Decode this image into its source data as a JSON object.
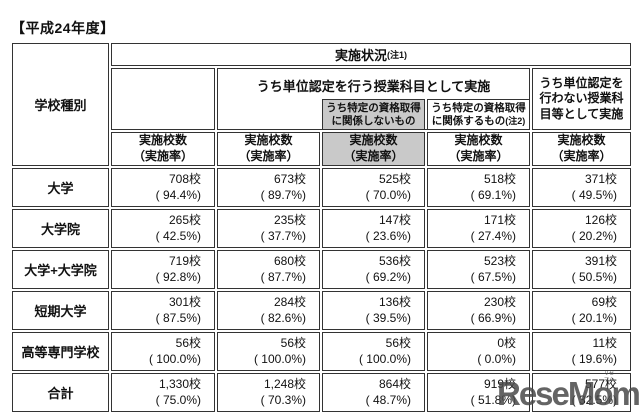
{
  "title": "【平成24年度】",
  "table": {
    "school_type": "学校種別",
    "status_header": "実施状況",
    "status_note": "(注1)",
    "credit_header": "うち単位認定を行う授業科目として実施",
    "not_related_header": "うち特定の資格取得に関係しないもの",
    "related_header": "うち特定の資格取得に関係するもの",
    "related_note": "(注2)",
    "no_credit_header": "うち単位認定を行わない授業科目等として実施",
    "count_label": "実施校数",
    "rate_label": "（実施率）",
    "rows": [
      {
        "label": "大学",
        "cells": [
          {
            "n": "708校",
            "p": "( 94.4%)"
          },
          {
            "n": "673校",
            "p": "( 89.7%)"
          },
          {
            "n": "525校",
            "p": "( 70.0%)"
          },
          {
            "n": "518校",
            "p": "( 69.1%)"
          },
          {
            "n": "371校",
            "p": "( 49.5%)"
          }
        ]
      },
      {
        "label": "大学院",
        "cells": [
          {
            "n": "265校",
            "p": "( 42.5%)"
          },
          {
            "n": "235校",
            "p": "( 37.7%)"
          },
          {
            "n": "147校",
            "p": "( 23.6%)"
          },
          {
            "n": "171校",
            "p": "( 27.4%)"
          },
          {
            "n": "126校",
            "p": "( 20.2%)"
          }
        ]
      },
      {
        "label": "大学+大学院",
        "cells": [
          {
            "n": "719校",
            "p": "( 92.8%)"
          },
          {
            "n": "680校",
            "p": "( 87.7%)"
          },
          {
            "n": "536校",
            "p": "( 69.2%)"
          },
          {
            "n": "523校",
            "p": "( 67.5%)"
          },
          {
            "n": "391校",
            "p": "( 50.5%)"
          }
        ]
      },
      {
        "label": "短期大学",
        "cells": [
          {
            "n": "301校",
            "p": "( 87.5%)"
          },
          {
            "n": "284校",
            "p": "( 82.6%)"
          },
          {
            "n": "136校",
            "p": "( 39.5%)"
          },
          {
            "n": "230校",
            "p": "( 66.9%)"
          },
          {
            "n": "69校",
            "p": "( 20.1%)"
          }
        ]
      },
      {
        "label": "高等専門学校",
        "cells": [
          {
            "n": "56校",
            "p": "( 100.0%)"
          },
          {
            "n": "56校",
            "p": "( 100.0%)"
          },
          {
            "n": "56校",
            "p": "( 100.0%)"
          },
          {
            "n": "0校",
            "p": "( 0.0%)"
          },
          {
            "n": "11校",
            "p": "( 19.6%)"
          }
        ]
      },
      {
        "label": "合計",
        "cells": [
          {
            "n": "1,330校",
            "p": "( 75.0%)"
          },
          {
            "n": "1,248校",
            "p": "( 70.3%)"
          },
          {
            "n": "864校",
            "p": "( 48.7%)"
          },
          {
            "n": "919校",
            "p": "( 51.8%)"
          },
          {
            "n": "577校",
            "p": "( 32.5%)"
          }
        ]
      }
    ]
  },
  "watermark": {
    "logo": "ReseMom",
    "tiny": "リセマム"
  },
  "colors": {
    "border": "#333333",
    "gray_column": "#c9c9c9",
    "watermark": "#4a4a4a"
  },
  "chart_data": {
    "type": "table",
    "title": "平成24年度 実施状況(注1)",
    "row_header": "学校種別",
    "columns": [
      "実施校数（実施率）",
      "うち単位認定を行う授業科目として実施 実施校数（実施率）",
      "うち単位認定を行う授業科目として実施 うち特定の資格取得に関係しないもの 実施校数（実施率）",
      "うち単位認定を行う授業科目として実施 うち特定の資格取得に関係するもの(注2) 実施校数（実施率）",
      "うち単位認定を行わない授業科目等として実施 実施校数（実施率）"
    ],
    "rows": [
      {
        "category": "大学",
        "schools": [
          708,
          673,
          525,
          518,
          371
        ],
        "rates_percent": [
          94.4,
          89.7,
          70.0,
          69.1,
          49.5
        ]
      },
      {
        "category": "大学院",
        "schools": [
          265,
          235,
          147,
          171,
          126
        ],
        "rates_percent": [
          42.5,
          37.7,
          23.6,
          27.4,
          20.2
        ]
      },
      {
        "category": "大学+大学院",
        "schools": [
          719,
          680,
          536,
          523,
          391
        ],
        "rates_percent": [
          92.8,
          87.7,
          69.2,
          67.5,
          50.5
        ]
      },
      {
        "category": "短期大学",
        "schools": [
          301,
          284,
          136,
          230,
          69
        ],
        "rates_percent": [
          87.5,
          82.6,
          39.5,
          66.9,
          20.1
        ]
      },
      {
        "category": "高等専門学校",
        "schools": [
          56,
          56,
          56,
          0,
          11
        ],
        "rates_percent": [
          100.0,
          100.0,
          100.0,
          0.0,
          19.6
        ]
      },
      {
        "category": "合計",
        "schools": [
          1330,
          1248,
          864,
          919,
          577
        ],
        "rates_percent": [
          75.0,
          70.3,
          48.7,
          51.8,
          32.5
        ]
      }
    ],
    "highlighted_column_index": 2,
    "layout": "nested header table, column 3 shaded gray"
  }
}
